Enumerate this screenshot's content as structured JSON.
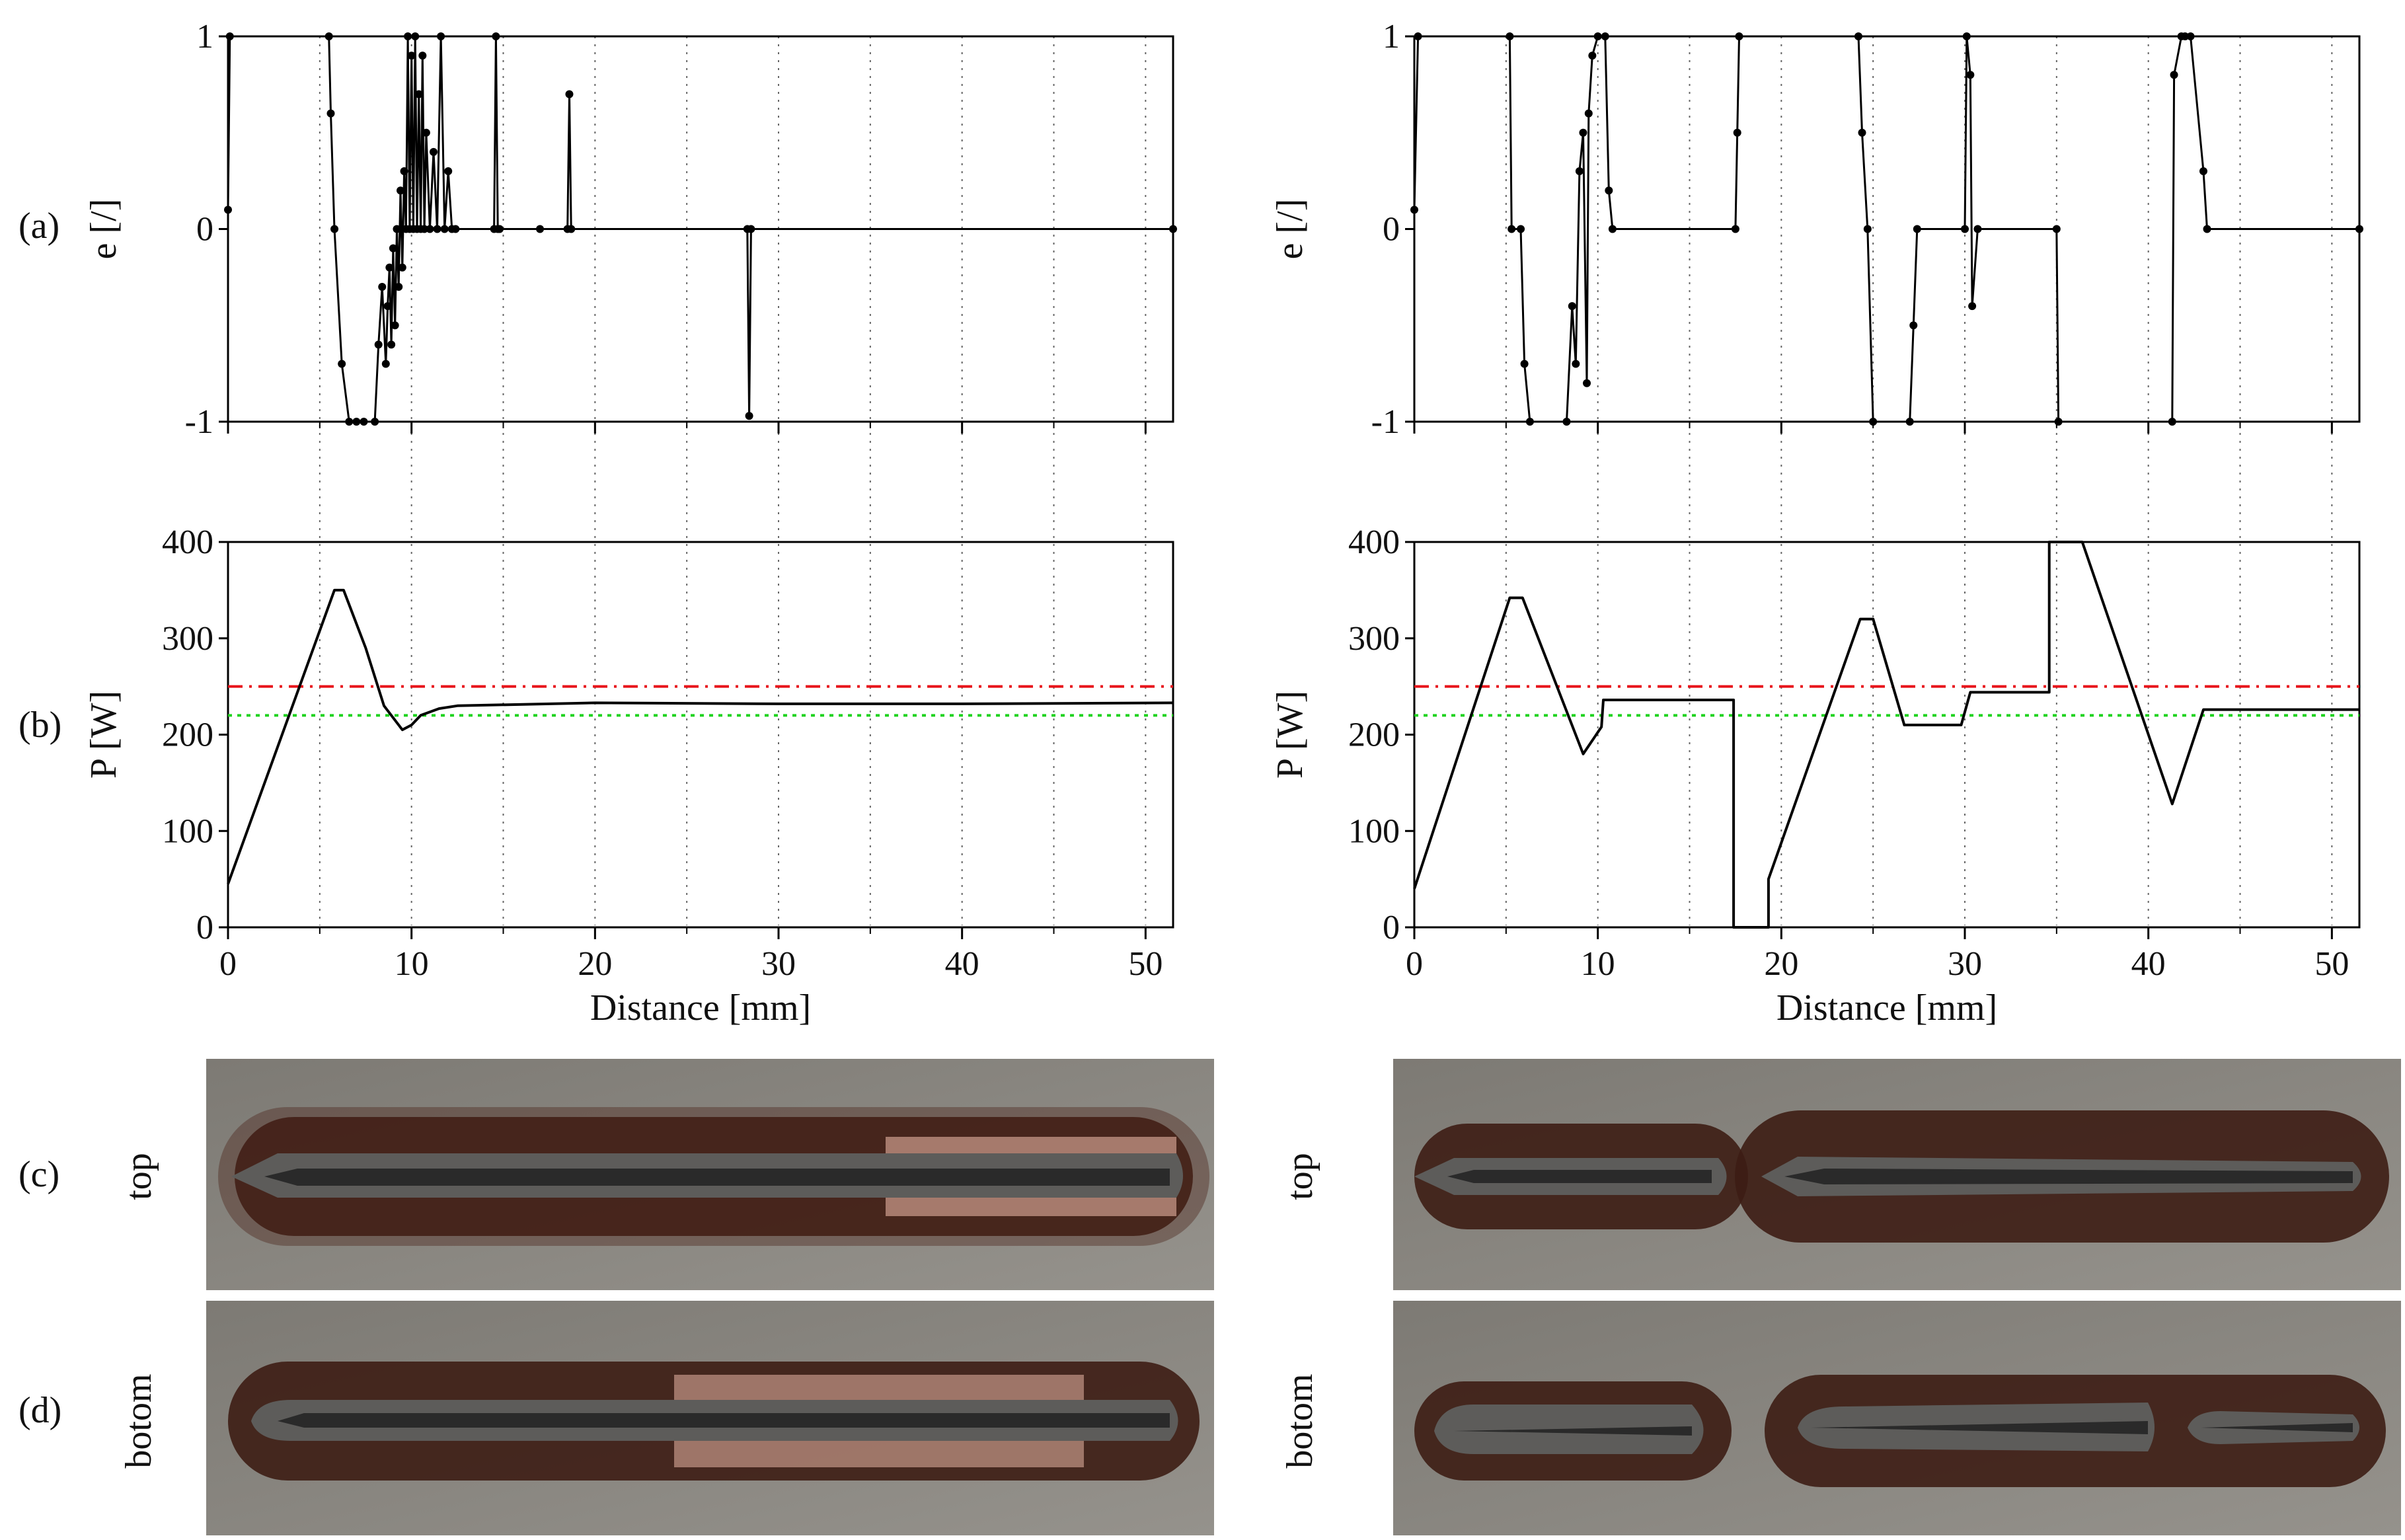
{
  "panel_labels": {
    "a": "(a)",
    "b": "(b)",
    "c": "(c)",
    "d": "(d)"
  },
  "photo_labels": {
    "top": "top",
    "bottom": "botom"
  },
  "colors": {
    "line": "#000000",
    "ref_red": "#e8141a",
    "ref_green": "#1ed31e",
    "grid": "#666666",
    "photo_plate": "#8a8781",
    "photo_oxide": "#3d1d14",
    "photo_bead": "#5d5c5a",
    "photo_copper": "#c59787"
  },
  "chart_data": [
    {
      "id": "left-e",
      "type": "line",
      "xlabel": "",
      "ylabel": "e [/]",
      "xlim": [
        0,
        51.5
      ],
      "ylim": [
        -1,
        1
      ],
      "xticks": [
        0,
        10,
        20,
        30,
        40,
        50
      ],
      "yticks": [
        -1,
        0,
        1
      ],
      "yticklabels": [
        "-1",
        "0",
        "1"
      ],
      "grid": "vertical dotted",
      "markers": true,
      "series": [
        {
          "x": [
            0,
            0.1,
            5.5,
            5.6,
            5.8,
            6.2,
            6.6,
            7.0,
            7.4,
            8.0,
            8.2,
            8.4,
            8.6,
            8.7,
            8.8,
            8.9,
            9.0,
            9.1,
            9.2,
            9.3,
            9.4,
            9.5,
            9.6,
            9.7,
            9.8,
            9.9,
            10.0,
            10.1,
            10.2,
            10.3,
            10.4,
            10.5,
            10.6,
            10.7,
            10.8,
            11.0,
            11.2,
            11.4,
            11.6,
            11.8,
            12.0,
            12.2,
            12.4,
            14.5,
            14.6,
            14.7,
            14.8,
            17.0,
            18.5,
            18.6,
            18.7,
            28.3,
            28.4,
            28.5,
            51.5
          ],
          "y": [
            0.1,
            1,
            1,
            0.6,
            0,
            -0.7,
            -1,
            -1,
            -1,
            -1,
            -0.6,
            -0.3,
            -0.7,
            -0.4,
            -0.2,
            -0.6,
            -0.1,
            -0.5,
            0,
            -0.3,
            0.2,
            -0.2,
            0.3,
            0,
            1,
            0,
            0.9,
            0,
            1,
            0,
            0.7,
            0,
            0.9,
            0,
            0.5,
            0,
            0.4,
            0,
            1,
            0,
            0.3,
            0,
            0,
            0,
            1,
            0,
            0,
            0,
            0,
            0.7,
            0,
            0,
            -0.97,
            0,
            0
          ]
        }
      ]
    },
    {
      "id": "left-p",
      "type": "line",
      "xlabel": "Distance [mm]",
      "ylabel": "P [W]",
      "xlim": [
        0,
        51.5
      ],
      "ylim": [
        0,
        400
      ],
      "xticks": [
        0,
        10,
        20,
        30,
        40,
        50
      ],
      "yticks": [
        0,
        100,
        200,
        300,
        400
      ],
      "xticklabels": [
        "0",
        "10",
        "20",
        "30",
        "40",
        "50"
      ],
      "yticklabels": [
        "0",
        "100",
        "200",
        "300",
        "400"
      ],
      "reference_lines": [
        {
          "y": 250,
          "style": "dash-dot",
          "color": "red"
        },
        {
          "y": 220,
          "style": "dotted",
          "color": "green"
        }
      ],
      "series": [
        {
          "x": [
            0,
            5.8,
            6.3,
            7.5,
            8.5,
            9.5,
            10.0,
            10.5,
            11.5,
            12.5,
            20,
            30,
            40,
            51.5
          ],
          "y": [
            45,
            350,
            350,
            290,
            230,
            205,
            210,
            220,
            227,
            230,
            233,
            232,
            232,
            233
          ]
        }
      ]
    },
    {
      "id": "right-e",
      "type": "line",
      "xlabel": "",
      "ylabel": "e [/]",
      "xlim": [
        0,
        51.5
      ],
      "ylim": [
        -1,
        1
      ],
      "xticks": [
        0,
        10,
        20,
        30,
        40,
        50
      ],
      "yticks": [
        -1,
        0,
        1
      ],
      "yticklabels": [
        "-1",
        "0",
        "1"
      ],
      "grid": "vertical dotted",
      "markers": true,
      "series": [
        {
          "x": [
            0,
            0.2,
            5.2,
            5.3,
            5.8,
            6.0,
            6.3,
            8.3,
            8.6,
            8.8,
            9.0,
            9.2,
            9.4,
            9.5,
            9.7,
            10.0,
            10.4,
            10.6,
            10.8,
            17.5,
            17.6,
            17.7,
            24.2,
            24.4,
            24.7,
            25.0,
            27.0,
            27.2,
            27.4,
            30.0,
            30.1,
            30.3,
            30.4,
            30.7,
            35.0,
            35.1,
            41.3,
            41.4,
            41.8,
            42.0,
            42.3,
            43.0,
            43.2,
            51.5
          ],
          "y": [
            0.1,
            1,
            1,
            0,
            0,
            -0.7,
            -1,
            -1,
            -0.4,
            -0.7,
            0.3,
            0.5,
            -0.8,
            0.6,
            0.9,
            1,
            1,
            0.2,
            0,
            0,
            0.5,
            1,
            1,
            0.5,
            0,
            -1,
            -1,
            -0.5,
            0,
            0,
            1,
            0.8,
            -0.4,
            0,
            0,
            -1,
            -1,
            0.8,
            1,
            1,
            1,
            0.3,
            0,
            0
          ]
        }
      ]
    },
    {
      "id": "right-p",
      "type": "line",
      "xlabel": "Distance [mm]",
      "ylabel": "P [W]",
      "xlim": [
        0,
        51.5
      ],
      "ylim": [
        0,
        400
      ],
      "xticks": [
        0,
        10,
        20,
        30,
        40,
        50
      ],
      "yticks": [
        0,
        100,
        200,
        300,
        400
      ],
      "xticklabels": [
        "0",
        "10",
        "20",
        "30",
        "40",
        "50"
      ],
      "yticklabels": [
        "0",
        "100",
        "200",
        "300",
        "400"
      ],
      "reference_lines": [
        {
          "y": 250,
          "style": "dash-dot",
          "color": "red"
        },
        {
          "y": 220,
          "style": "dotted",
          "color": "green"
        }
      ],
      "series": [
        {
          "x": [
            0,
            5.2,
            5.9,
            9.2,
            10.2,
            10.3,
            17.4,
            17.4,
            19.3,
            19.3,
            24.3,
            25.0,
            26.7,
            29.8,
            30.3,
            34.6,
            34.6,
            36.4,
            41.3,
            43.0,
            51.5
          ],
          "y": [
            40,
            342,
            342,
            180,
            208,
            236,
            236,
            0,
            0,
            50,
            320,
            320,
            210,
            210,
            244,
            244,
            400,
            400,
            128,
            226,
            226
          ]
        }
      ]
    }
  ]
}
